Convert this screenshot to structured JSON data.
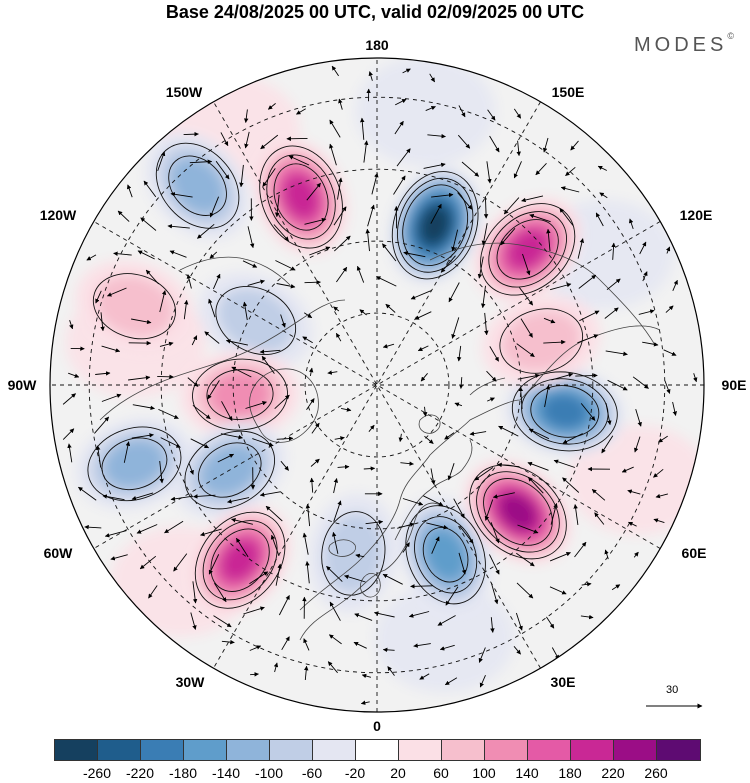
{
  "title": "Base 24/08/2025 00 UTC, valid 02/09/2025 00 UTC",
  "brand": "MODES",
  "brand_mark": "©",
  "longitude_labels": {
    "north": "180",
    "n_east": "150E",
    "n_west": "150W",
    "w_north": "120W",
    "e_north": "120E",
    "west": "90W",
    "east": "90E",
    "w_south": "60W",
    "e_south": "60E",
    "s_west": "30W",
    "s_east": "30E",
    "south": "0"
  },
  "vector_scale": {
    "label": "30"
  },
  "colorbar": {
    "colors": [
      "#15405f",
      "#1f5d8c",
      "#3a7db4",
      "#5f9dcb",
      "#8fb4da",
      "#c0cee6",
      "#e4e6f2",
      "#ffffff",
      "#fbe0e6",
      "#f6bfcd",
      "#f08db3",
      "#e45aa6",
      "#c92895",
      "#9b0d86",
      "#5e0b72"
    ],
    "ticks": [
      "-260",
      "-220",
      "-180",
      "-140",
      "-100",
      "-60",
      "-20",
      "20",
      "60",
      "100",
      "140",
      "180",
      "220",
      "260"
    ]
  },
  "anomaly_centers": [
    {
      "sign": "neg",
      "lon_deg": 160,
      "colat": 0.52,
      "level": 6
    },
    {
      "sign": "pos",
      "lon_deg": 132,
      "colat": 0.62,
      "level": 4
    },
    {
      "sign": "pos",
      "lon_deg": -158,
      "colat": 0.62,
      "level": 4
    },
    {
      "sign": "neg",
      "lon_deg": -138,
      "colat": 0.82,
      "level": 2
    },
    {
      "sign": "pos",
      "lon_deg": -108,
      "colat": 0.78,
      "level": 1
    },
    {
      "sign": "neg",
      "lon_deg": -118,
      "colat": 0.42,
      "level": 1
    },
    {
      "sign": "pos",
      "lon_deg": -86,
      "colat": 0.42,
      "level": 2
    },
    {
      "sign": "neg",
      "lon_deg": -72,
      "colat": 0.78,
      "level": 2
    },
    {
      "sign": "neg",
      "lon_deg": -60,
      "colat": 0.52,
      "level": 2
    },
    {
      "sign": "pos",
      "lon_deg": -38,
      "colat": 0.68,
      "level": 4
    },
    {
      "sign": "neg",
      "lon_deg": -8,
      "colat": 0.52,
      "level": 1
    },
    {
      "sign": "neg",
      "lon_deg": 22,
      "colat": 0.56,
      "level": 3
    },
    {
      "sign": "pos",
      "lon_deg": 48,
      "colat": 0.58,
      "level": 5
    },
    {
      "sign": "neg",
      "lon_deg": 82,
      "colat": 0.58,
      "level": 4
    },
    {
      "sign": "pos",
      "lon_deg": 105,
      "colat": 0.52,
      "level": 1
    }
  ]
}
